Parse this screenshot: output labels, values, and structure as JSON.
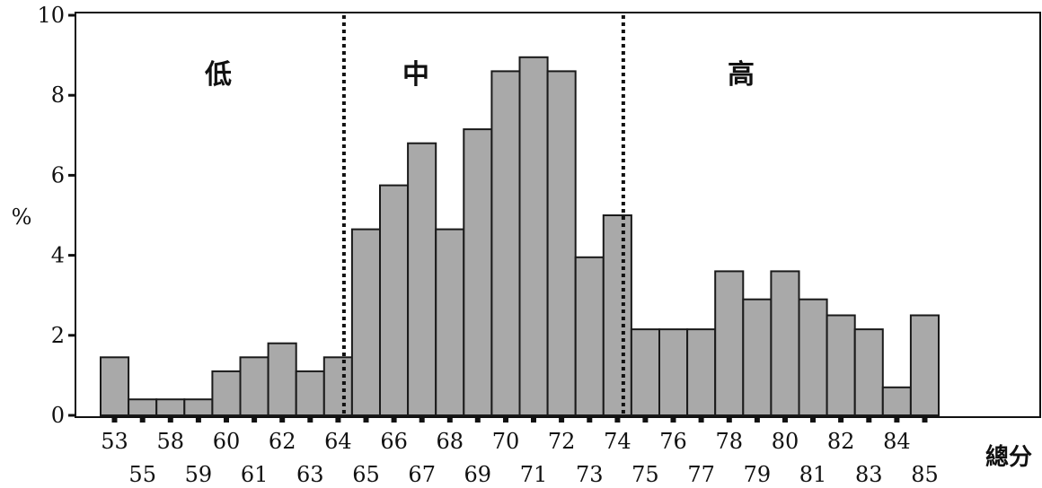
{
  "chart_data": {
    "type": "bar",
    "categories": [
      "53",
      "55",
      "58",
      "59",
      "60",
      "61",
      "62",
      "63",
      "64",
      "65",
      "66",
      "67",
      "68",
      "69",
      "70",
      "71",
      "72",
      "73",
      "74",
      "75",
      "76",
      "77",
      "78",
      "79",
      "80",
      "81",
      "82",
      "83",
      "84",
      "85"
    ],
    "values": [
      1.45,
      0.4,
      0.4,
      0.4,
      1.1,
      1.45,
      1.8,
      1.1,
      1.45,
      4.65,
      5.75,
      6.8,
      4.65,
      7.15,
      8.6,
      8.95,
      8.6,
      3.95,
      5.0,
      2.15,
      2.15,
      2.15,
      3.6,
      2.9,
      3.6,
      2.9,
      2.5,
      2.15,
      0.7,
      2.5
    ],
    "xlabel": "總分",
    "ylabel": "%",
    "ylim": [
      0,
      10
    ],
    "yticks": [
      "0",
      "2",
      "4",
      "6",
      "8",
      "10"
    ],
    "regions": [
      {
        "label": "低",
        "after_category": "64"
      },
      {
        "label": "中",
        "after_category": "74"
      },
      {
        "label": "高"
      }
    ],
    "grid": false
  }
}
